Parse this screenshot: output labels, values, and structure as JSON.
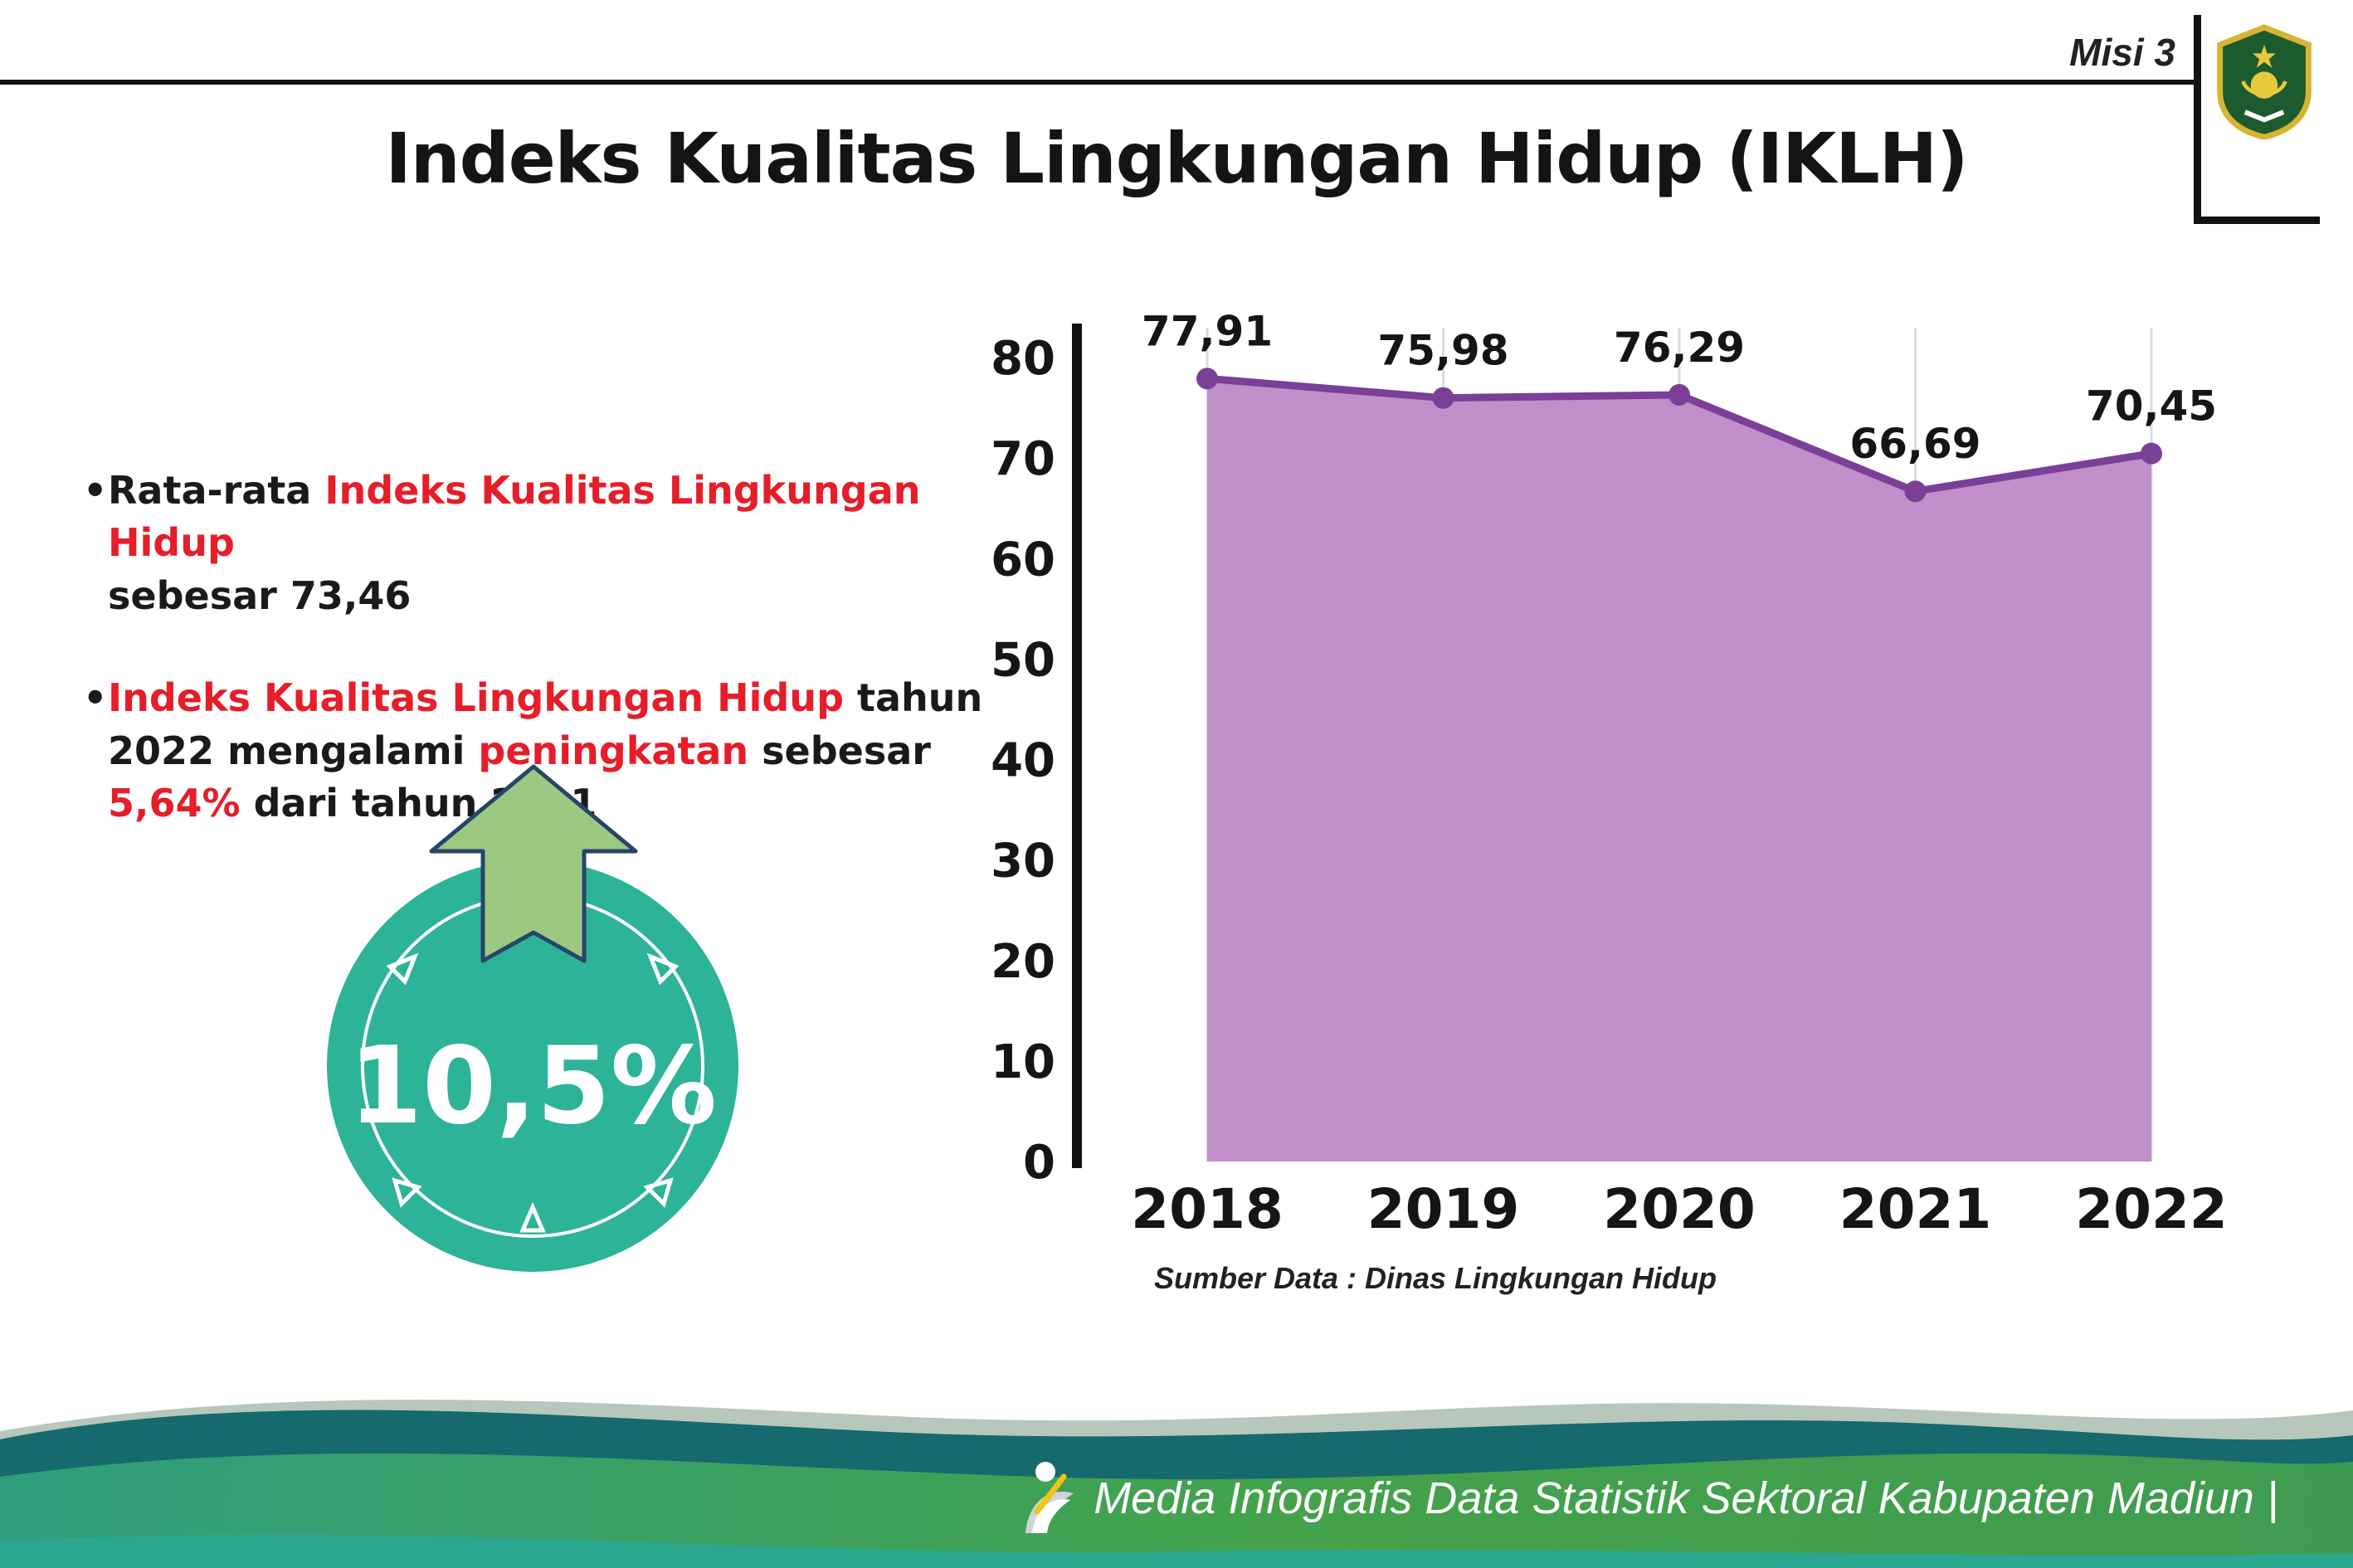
{
  "header": {
    "misi": "Misi 3",
    "title": "Indeks Kualitas Lingkungan Hidup (IKLH)"
  },
  "bullets": {
    "bullet": "•",
    "b1_seg1": "Rata-rata ",
    "b1_seg2": "Indeks Kualitas Lingkungan Hidup",
    "b1_seg3": "sebesar 73,46",
    "b2_seg1": "Indeks Kualitas Lingkungan Hidup",
    "b2_seg2": " tahun 2022 mengalami ",
    "b2_seg3": "peningkatan",
    "b2_seg4": " sebesar ",
    "b2_seg5": "5,64%",
    "b2_seg6": " dari tahun 2021"
  },
  "badge": {
    "value": "10,5%"
  },
  "chart_data": {
    "type": "area",
    "title": "",
    "categories": [
      "2018",
      "2019",
      "2020",
      "2021",
      "2022"
    ],
    "values": [
      77.91,
      75.98,
      76.29,
      66.69,
      70.45
    ],
    "value_labels": [
      "77,91",
      "75,98",
      "76,29",
      "66,69",
      "70,45"
    ],
    "ylim": [
      0,
      80
    ],
    "ytick_step": 10,
    "grid": "vertical",
    "legend": "none",
    "fill_color": "#c18fc9",
    "line_color": "#7b3f98",
    "source": "Sumber Data : Dinas Lingkungan Hidup"
  },
  "footer": {
    "credit": "Media Infografis Data Statistik Sektoral Kabupaten Madiun |"
  },
  "colors": {
    "accent_red": "#e51e2a",
    "badge_teal": "#2db397",
    "arrow_green": "#9cc981",
    "footer_dark_teal": "#16696d",
    "footer_green": "#3f9b50",
    "footer_sage": "#b7c7bb"
  }
}
